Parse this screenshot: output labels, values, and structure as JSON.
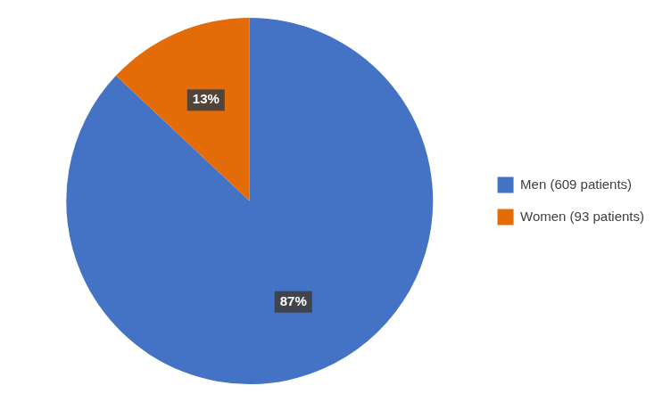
{
  "chart_data": {
    "type": "pie",
    "categories": [
      "Men (609 patients)",
      "Women (93 patients)"
    ],
    "values": [
      87,
      13
    ],
    "value_labels": [
      "87%",
      "13%"
    ],
    "colors": [
      "#4472C4",
      "#E36C09"
    ],
    "data_labels": true,
    "legend": "right"
  }
}
